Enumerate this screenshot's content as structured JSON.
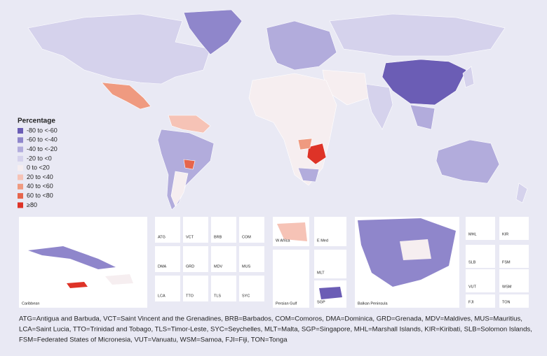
{
  "legend": {
    "title": "Percentage",
    "items": [
      {
        "label": "-80 to <-60",
        "color": "#6b5db5"
      },
      {
        "label": "-60 to <-40",
        "color": "#8f86cb"
      },
      {
        "label": "-40 to <-20",
        "color": "#b2acdc"
      },
      {
        "label": "-20 to <0",
        "color": "#d5d2ec"
      },
      {
        "label": "0 to <20",
        "color": "#f6eef0"
      },
      {
        "label": "20 to <40",
        "color": "#f6c3b6"
      },
      {
        "label": "40 to <60",
        "color": "#ef9a80"
      },
      {
        "label": "60 to <80",
        "color": "#e6654c"
      },
      {
        "label": "≥80",
        "color": "#de3327"
      }
    ]
  },
  "insets": [
    "Caribbean",
    "ATG",
    "VCT",
    "BRB",
    "COM",
    "DMA",
    "GRD",
    "MDV",
    "MUS",
    "LCA",
    "TTO",
    "TLS",
    "SYC",
    "W Africa",
    "E Med",
    "Persian Gulf",
    "MLT",
    "SGP",
    "Balkan Peninsula",
    "MHL",
    "KIR",
    "SLB",
    "FSM",
    "VUT",
    "WSM",
    "FJI",
    "TON"
  ],
  "footnote": [
    "ATG=Antigua and Barbuda, VCT=Saint Vincent and the Grenadines, BRB=Barbados, COM=Comoros, DMA=Dominica, GRD=Grenada, MDV=Maldives, MUS=Mauritius,",
    "LCA=Saint Lucia, TTO=Trinidad and Tobago, TLS=Timor-Leste, SYC=Seychelles, MLT=Malta, SGP=Singapore, MHL=Marshall Islands, KIR=Kiribati, SLB=Solomon Islands,",
    "FSM=Federated States of Micronesia, VUT=Vanuatu, WSM=Samoa, FJI=Fiji, TON=Tonga"
  ]
}
